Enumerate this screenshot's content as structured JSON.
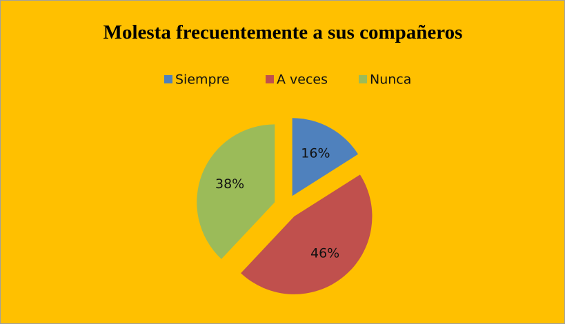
{
  "chart_data": {
    "type": "pie",
    "title": "Molesta frecuentemente a sus compañeros",
    "categories": [
      "Siempre",
      "A veces",
      "Nunca"
    ],
    "values": [
      16,
      46,
      38
    ],
    "value_labels": [
      "16%",
      "46%",
      "38%"
    ],
    "colors": [
      "#4f81bd",
      "#c0504d",
      "#9bbb59"
    ],
    "legend": "top"
  }
}
